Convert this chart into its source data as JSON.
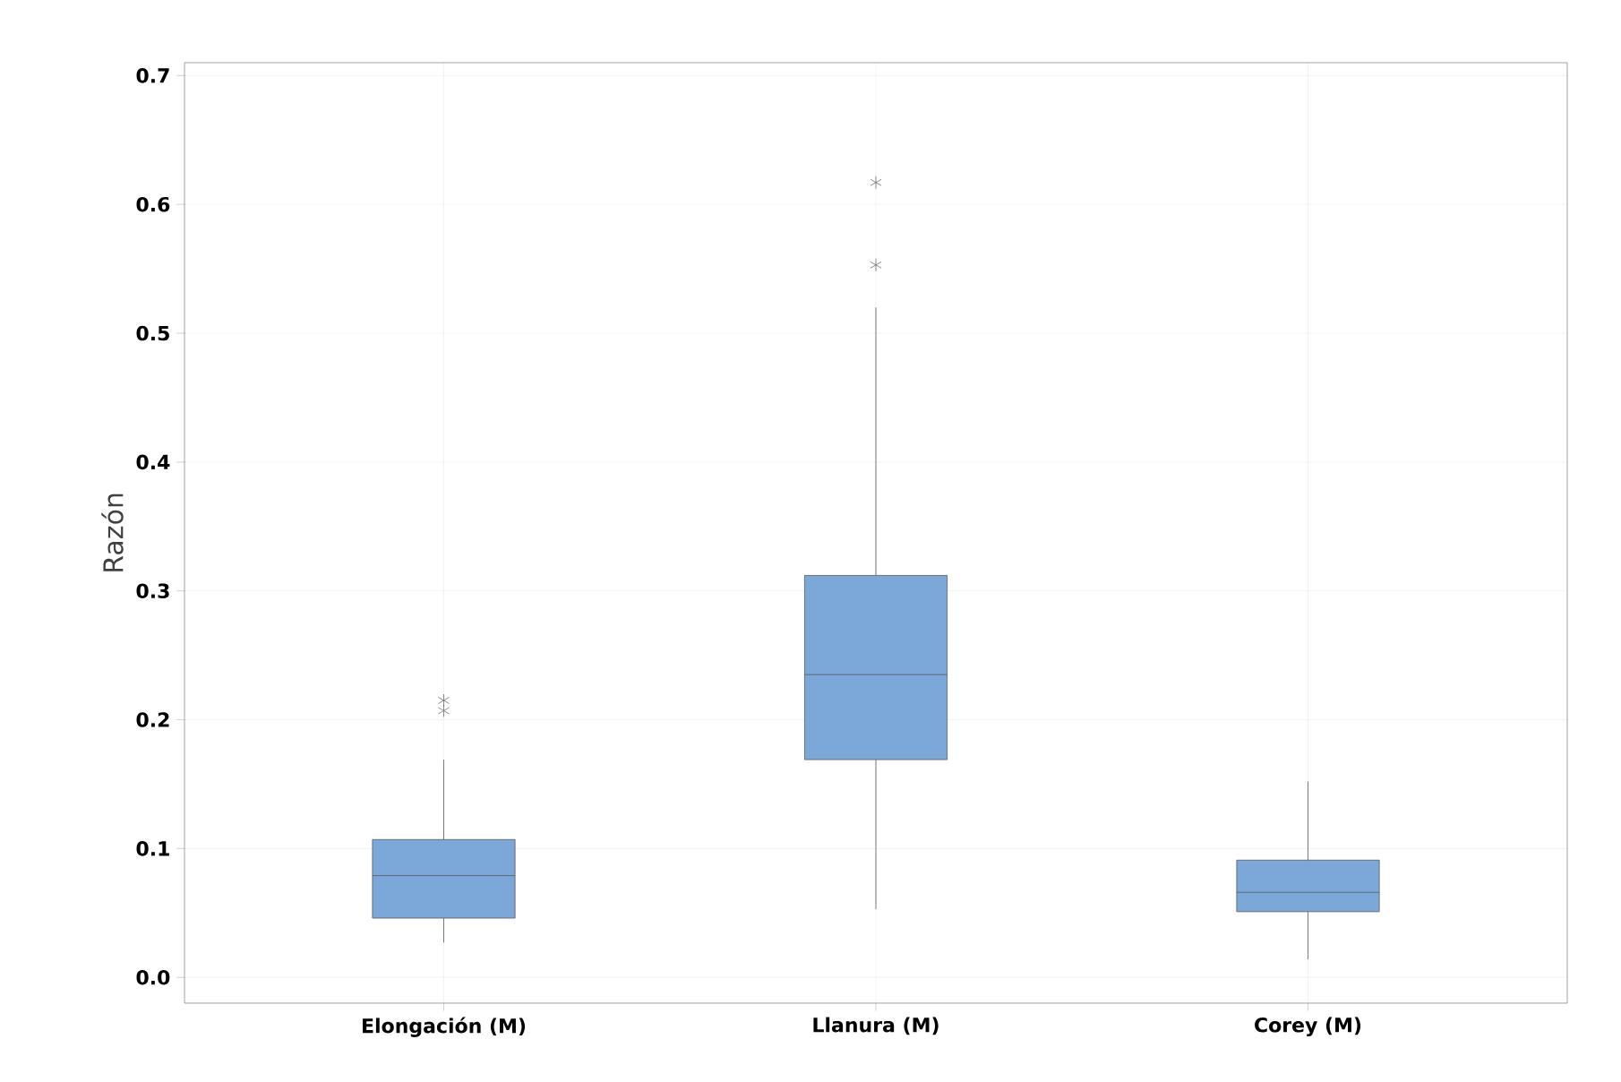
{
  "chart_data": {
    "type": "box",
    "ylabel": "Razón",
    "categories": [
      "Elongación (M)",
      "Llanura (M)",
      "Corey (M)"
    ],
    "series": [
      {
        "color": "#7ba7d9",
        "boxes": [
          {
            "low": 0.027,
            "q1": 0.046,
            "median": 0.079,
            "q3": 0.107,
            "high": 0.169,
            "outliers": [
              0.215,
              0.207
            ]
          },
          {
            "low": 0.053,
            "q1": 0.169,
            "median": 0.235,
            "q3": 0.312,
            "high": 0.52,
            "outliers": [
              0.617,
              0.553
            ]
          },
          {
            "low": 0.014,
            "q1": 0.051,
            "median": 0.066,
            "q3": 0.091,
            "high": 0.152
          }
        ]
      }
    ],
    "ylim": [
      -0.02,
      0.71
    ],
    "yticks": [
      {
        "value": 0.0,
        "label": "0.0"
      },
      0.1,
      0.2,
      0.3,
      0.4,
      0.5,
      0.6,
      0.7
    ],
    "grid": true
  }
}
